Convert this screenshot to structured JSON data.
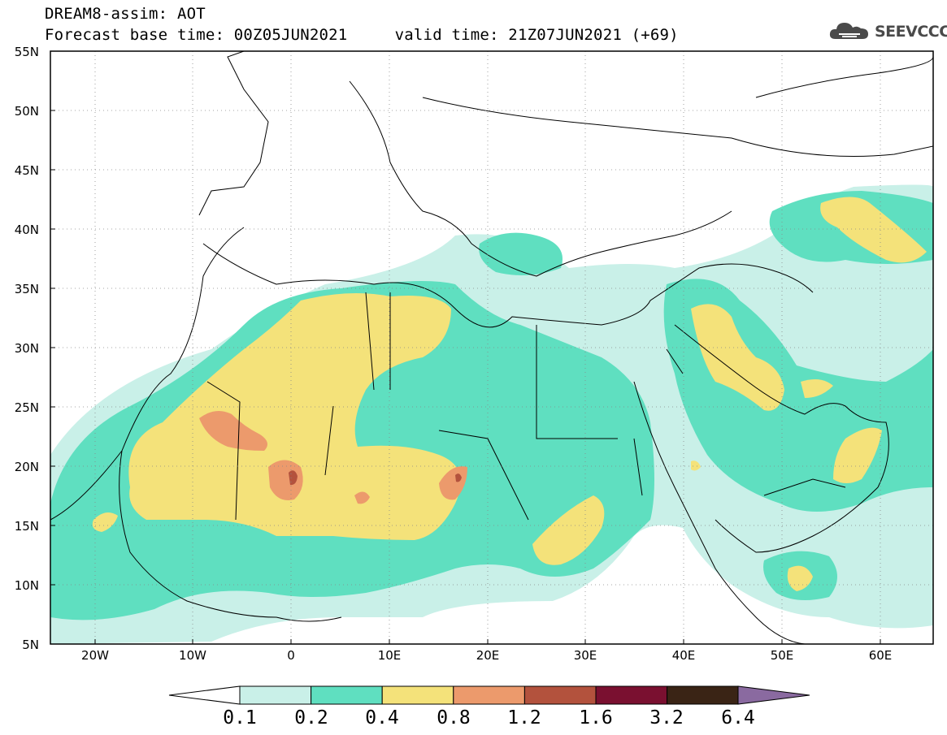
{
  "header": {
    "title_line1": "DREAM8-assim: AOT",
    "title_line2": "Forecast base time: 00Z05JUN2021     valid time: 21Z07JUN2021 (+69)"
  },
  "logo": {
    "text": "SEEVCCC",
    "icon": "cloud-logo-icon",
    "color": "#4a4a4a"
  },
  "map": {
    "lat_labels": [
      "55N",
      "50N",
      "45N",
      "40N",
      "35N",
      "30N",
      "25N",
      "20N",
      "15N",
      "10N",
      "5N"
    ],
    "lon_labels": [
      "20W",
      "10W",
      "0",
      "10E",
      "20E",
      "30E",
      "40E",
      "50E",
      "60E"
    ],
    "grid": "dotted",
    "background": "#ffffff"
  },
  "colorbar": {
    "labels": [
      "0.1",
      "0.2",
      "0.4",
      "0.8",
      "1.2",
      "1.6",
      "3.2",
      "6.4"
    ],
    "colors": [
      "#c9f0e8",
      "#5fdfc0",
      "#f4e27a",
      "#ec9a6c",
      "#b3523d",
      "#7a1030",
      "#3a2415",
      "#8a6aa0"
    ],
    "below_color": "#ffffff"
  }
}
